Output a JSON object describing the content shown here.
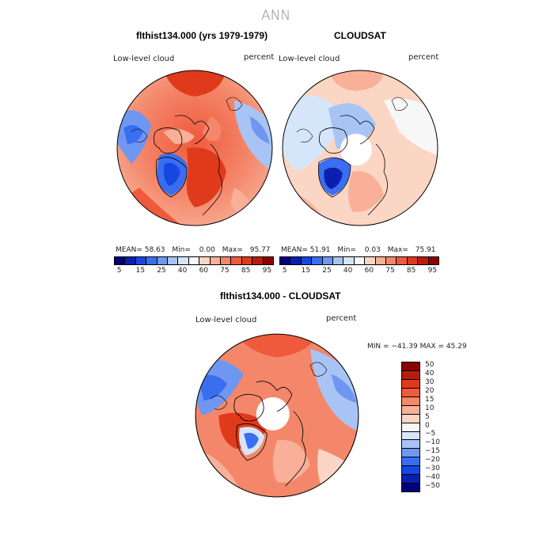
{
  "main_title": "ANN",
  "panel1": {
    "title": "flthist134.000 (yrs 1979-1979)",
    "left_label": "Low-level cloud",
    "right_label": "percent",
    "stats": {
      "mean_label": "MEAN=",
      "mean": "58.63",
      "min_label": "Min=",
      "min": "0.00",
      "max_label": "Max=",
      "max": "95.77"
    }
  },
  "panel2": {
    "title": "CLOUDSAT",
    "left_label": "Low-level cloud",
    "right_label": "percent",
    "stats": {
      "mean_label": "MEAN=",
      "mean": "51.91",
      "min_label": "Min=",
      "min": "0.03",
      "max_label": "Max=",
      "max": "75.91"
    }
  },
  "panel3": {
    "title": "flthist134.000 - CLOUDSAT",
    "left_label": "Low-level cloud",
    "right_label": "percent",
    "minmax": "MIN = −41.39  MAX =   45.29"
  },
  "colorbar_top": {
    "colors": [
      "#00007f",
      "#0a1fb0",
      "#1747e0",
      "#3a6ef0",
      "#6f97f2",
      "#a8c4f5",
      "#d6e6fa",
      "#f7f7f7",
      "#fbd6c4",
      "#f8b098",
      "#f4876a",
      "#ef5a3c",
      "#e03a1c",
      "#b81c0c",
      "#8c0000"
    ],
    "ticks": [
      "5",
      "15",
      "25",
      "40",
      "60",
      "75",
      "85",
      "95"
    ]
  },
  "colorbar_diff": {
    "colors": [
      "#8c0000",
      "#b81c0c",
      "#e03a1c",
      "#ef5a3c",
      "#f4876a",
      "#f8b098",
      "#fbd6c4",
      "#f7f7f7",
      "#d6e6fa",
      "#a8c4f5",
      "#6f97f2",
      "#3a6ef0",
      "#1747e0",
      "#0a1fb0",
      "#00007f"
    ],
    "ticks": [
      "50",
      "40",
      "30",
      "20",
      "15",
      "10",
      "5",
      "0",
      "−5",
      "−10",
      "−15",
      "−20",
      "−30",
      "−40",
      "−50"
    ]
  }
}
